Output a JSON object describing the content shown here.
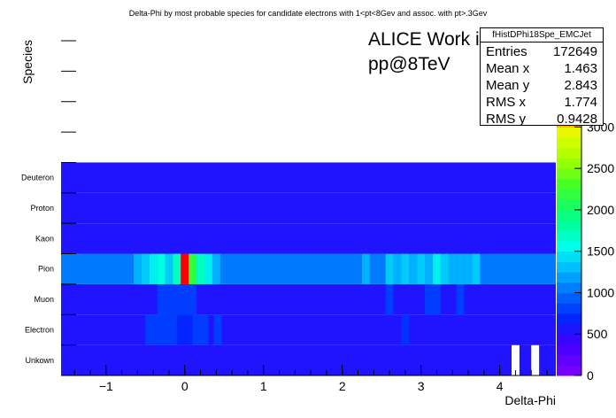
{
  "chart_data": {
    "type": "heatmap",
    "title": "Delta-Phi by most probable species for candidate electrons with 1<pt<8Gev and assoc. with pt>.3Gev",
    "xlabel": "Delta-Phi",
    "ylabel": "Species",
    "xlim": [
      -1.571,
      4.712
    ],
    "x_ticks": [
      -1,
      0,
      1,
      2,
      3,
      4
    ],
    "x_tick_labels": [
      "−1",
      "0",
      "1",
      "2",
      "3",
      "4"
    ],
    "y_categories": [
      "Unkown",
      "Electron",
      "Muon",
      "Pion",
      "Kaon",
      "Proton",
      "Deuteron",
      "",
      "",
      "",
      ""
    ],
    "z_max": 3250,
    "z_ticks": [
      0,
      500,
      1000,
      1500,
      2000,
      2500,
      3000
    ],
    "z_tick_labels": [
      "0",
      "500",
      "1000",
      "1500",
      "2000",
      "2500",
      "3000"
    ],
    "bin_width": 0.1,
    "rows": {
      "Unkown": [
        {
          "x": 4.2,
          "v": 10
        },
        {
          "x": 4.45,
          "v": 10
        }
      ],
      "Electron": [
        {
          "x": -0.45,
          "v": 800
        },
        {
          "x": -0.35,
          "v": 800
        },
        {
          "x": -0.25,
          "v": 800
        },
        {
          "x": -0.15,
          "v": 800
        },
        {
          "x": -0.05,
          "v": 700
        },
        {
          "x": 0.05,
          "v": 700
        },
        {
          "x": 0.15,
          "v": 800
        },
        {
          "x": 0.25,
          "v": 800
        },
        {
          "x": 0.42,
          "v": 800
        },
        {
          "x": 2.8,
          "v": 750
        }
      ],
      "Muon": [
        {
          "x": -0.3,
          "v": 800
        },
        {
          "x": -0.2,
          "v": 800
        },
        {
          "x": -0.1,
          "v": 800
        },
        {
          "x": 0.0,
          "v": 800
        },
        {
          "x": 0.1,
          "v": 800
        },
        {
          "x": 2.6,
          "v": 800
        },
        {
          "x": 3.1,
          "v": 800
        },
        {
          "x": 3.2,
          "v": 800
        },
        {
          "x": 3.5,
          "v": 800
        }
      ],
      "Pion_default": 1050,
      "Pion": [
        {
          "x": -0.6,
          "v": 1250
        },
        {
          "x": -0.5,
          "v": 1350
        },
        {
          "x": -0.4,
          "v": 1500
        },
        {
          "x": -0.3,
          "v": 1600
        },
        {
          "x": -0.2,
          "v": 1350
        },
        {
          "x": -0.1,
          "v": 1700
        },
        {
          "x": -0.0,
          "v": 3250
        },
        {
          "x": 0.1,
          "v": 2200
        },
        {
          "x": 0.2,
          "v": 1700
        },
        {
          "x": 0.3,
          "v": 1500
        },
        {
          "x": 0.4,
          "v": 1250
        },
        {
          "x": 2.3,
          "v": 1250
        },
        {
          "x": 2.6,
          "v": 1350
        },
        {
          "x": 2.7,
          "v": 1250
        },
        {
          "x": 2.8,
          "v": 1350
        },
        {
          "x": 2.9,
          "v": 1250
        },
        {
          "x": 3.0,
          "v": 1350
        },
        {
          "x": 3.1,
          "v": 1250
        },
        {
          "x": 3.2,
          "v": 1500
        },
        {
          "x": 3.3,
          "v": 1350
        },
        {
          "x": 3.4,
          "v": 1250
        },
        {
          "x": 3.5,
          "v": 1250
        },
        {
          "x": 3.6,
          "v": 1250
        },
        {
          "x": 3.7,
          "v": 1350
        },
        {
          "x": 3.8,
          "v": 1050
        }
      ],
      "Deuteron_default": 550,
      "Proton_default": 550,
      "Kaon_default": 550,
      "Muon_default": 550,
      "Electron_default": 550,
      "Unkown_default": 550
    }
  },
  "stats": {
    "name": "fHistDPhi18Spe_EMCJet",
    "rows": [
      {
        "label": "Entries",
        "value": "172649"
      },
      {
        "label": "Mean x",
        "value": "1.463"
      },
      {
        "label": "Mean y",
        "value": "2.843"
      },
      {
        "label": "RMS x",
        "value": "1.774"
      },
      {
        "label": "RMS y",
        "value": "0.9428"
      }
    ]
  },
  "annotation": {
    "line1": "ALICE Work in Progress",
    "line2": "pp@8TeV"
  }
}
